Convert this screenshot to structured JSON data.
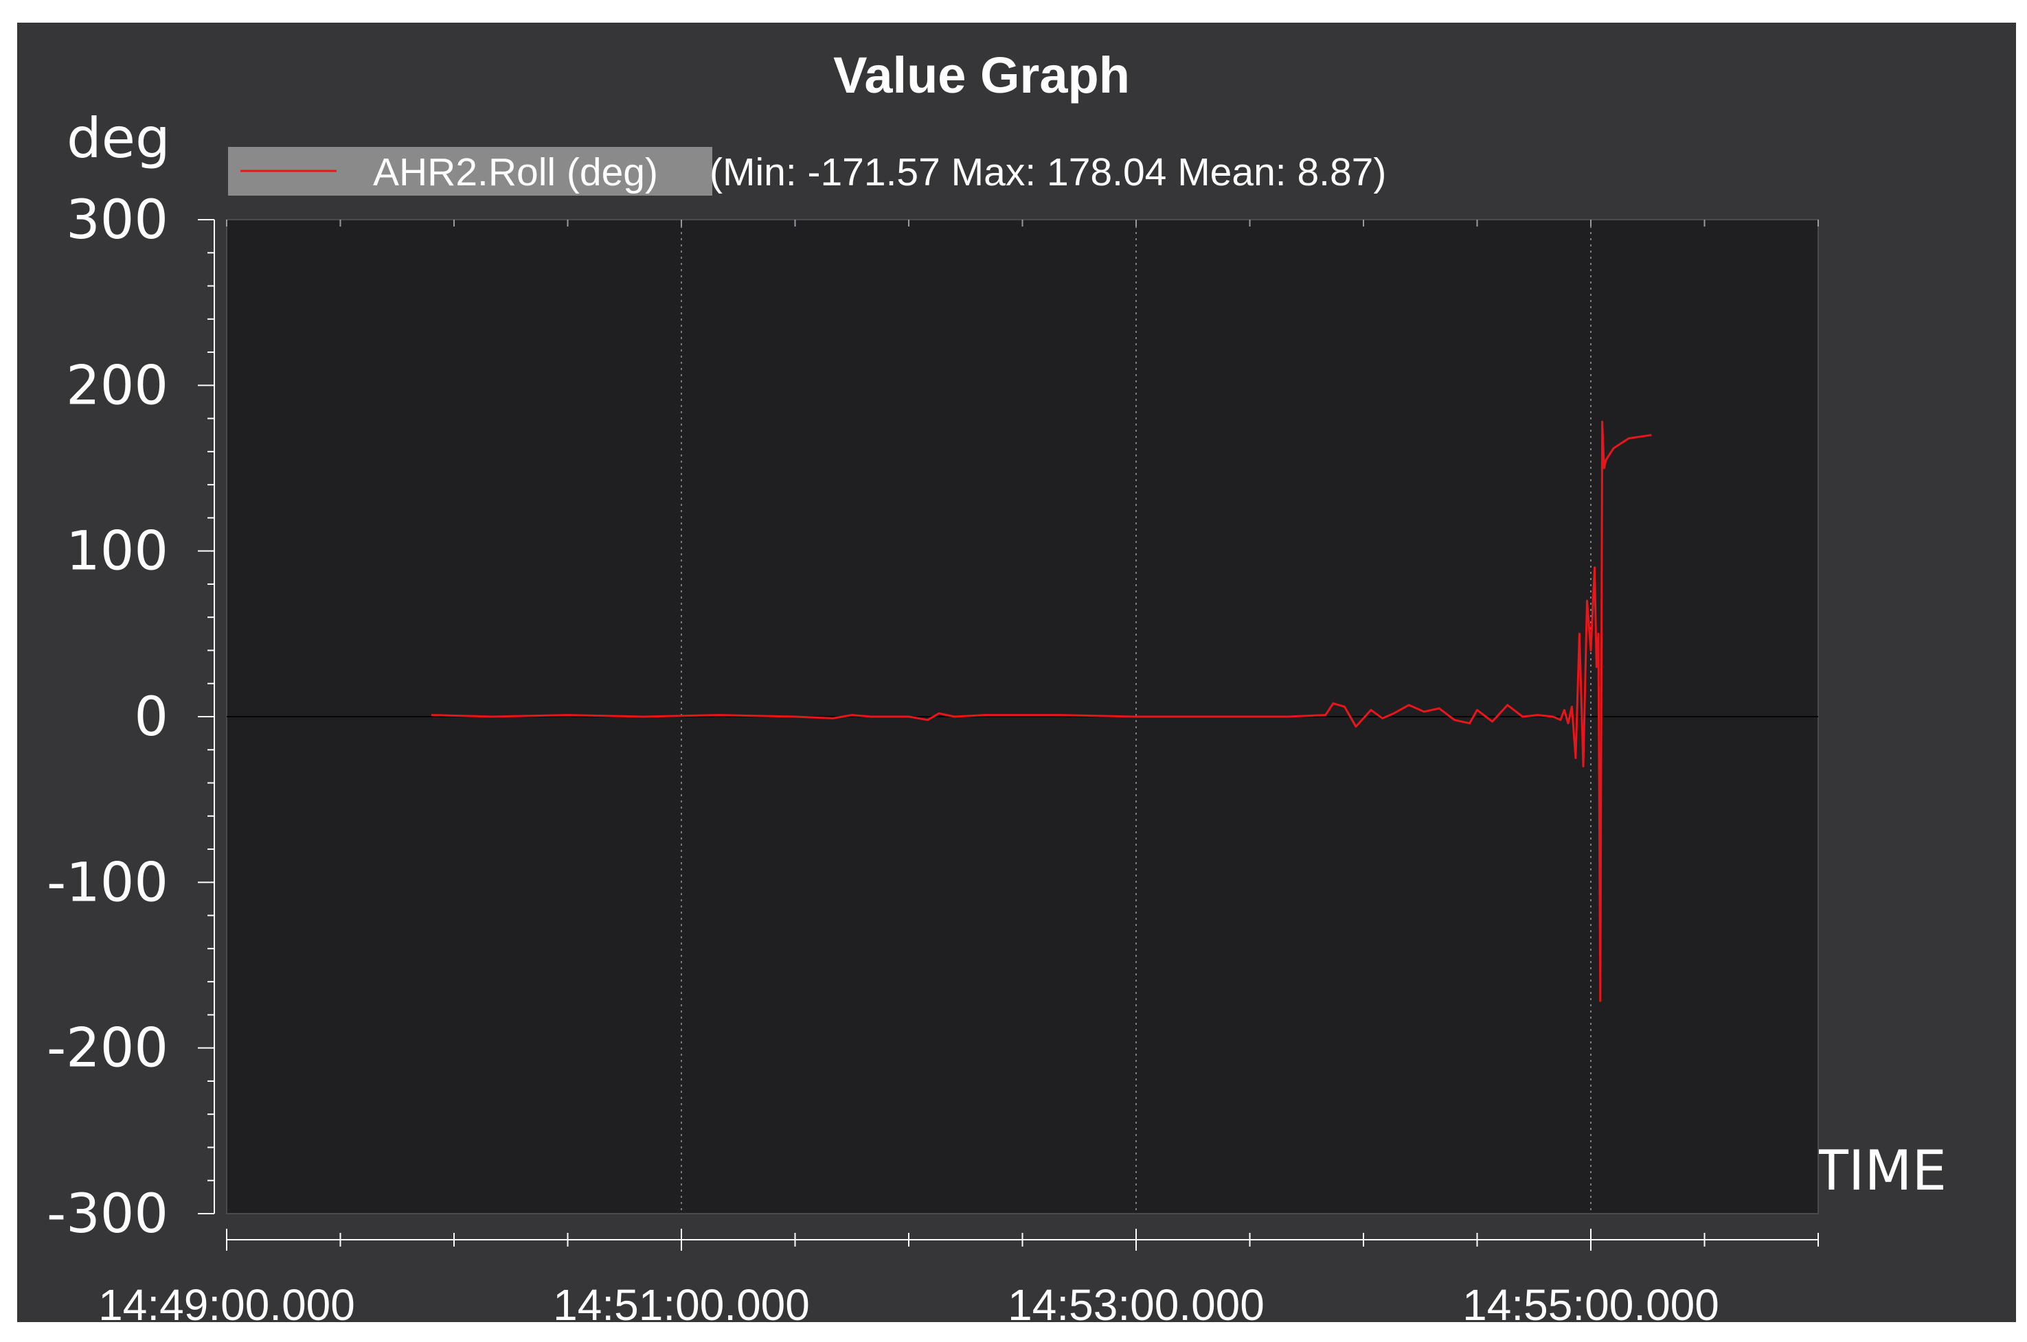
{
  "chart_data": {
    "type": "line",
    "title": "Value Graph",
    "ylabel": "deg",
    "xlabel": "TIME",
    "ylim": [
      -300,
      300
    ],
    "yticks": [
      300,
      200,
      100,
      0,
      -100,
      -200,
      -300
    ],
    "ytick_labels": [
      "300",
      "200",
      "100",
      "0",
      "-100",
      "-200",
      "-300"
    ],
    "xlim": [
      "14:49:00.000",
      "14:56:00.000"
    ],
    "xticks": [
      "14:49:00.000",
      "14:51:00.000",
      "14:53:00.000",
      "14:55:00.000"
    ],
    "grid": true,
    "legend_position": "top-left",
    "series": [
      {
        "name": "AHR2.Roll (deg)",
        "stats_text": "(Min: -171.57 Max: 178.04 Mean: 8.87)",
        "color": "#e8161b",
        "x": [
          "14:49:54.000",
          "14:50:10.000",
          "14:50:30.000",
          "14:50:50.000",
          "14:51:10.000",
          "14:51:30.000",
          "14:51:40.000",
          "14:51:45.000",
          "14:51:50.000",
          "14:52:00.000",
          "14:52:05.000",
          "14:52:08.000",
          "14:52:12.000",
          "14:52:20.000",
          "14:52:40.000",
          "14:53:00.000",
          "14:53:20.000",
          "14:53:40.000",
          "14:53:50.000",
          "14:53:52.000",
          "14:53:55.000",
          "14:53:58.000",
          "14:54:02.000",
          "14:54:05.000",
          "14:54:08.000",
          "14:54:12.000",
          "14:54:16.000",
          "14:54:20.000",
          "14:54:24.000",
          "14:54:28.000",
          "14:54:30.000",
          "14:54:34.000",
          "14:54:38.000",
          "14:54:42.000",
          "14:54:46.000",
          "14:54:50.000",
          "14:54:52.000",
          "14:54:53.000",
          "14:54:54.000",
          "14:54:55.000",
          "14:54:56.000",
          "14:54:57.000",
          "14:54:58.000",
          "14:54:59.000",
          "14:55:00.000",
          "14:55:01.000",
          "14:55:01.500",
          "14:55:02.000",
          "14:55:02.500",
          "14:55:03.000",
          "14:55:03.500",
          "14:55:04.000",
          "14:55:06.000",
          "14:55:10.000",
          "14:55:16.000"
        ],
        "values": [
          1,
          0,
          1,
          0,
          1,
          0,
          -1,
          1,
          0,
          0,
          -2,
          2,
          0,
          1,
          1,
          0,
          0,
          0,
          1,
          8,
          6,
          -6,
          4,
          -1,
          2,
          7,
          3,
          5,
          -2,
          -4,
          4,
          -3,
          7,
          0,
          1,
          0,
          -2,
          4,
          -4,
          6,
          -25,
          50,
          -30,
          70,
          40,
          90,
          30,
          50,
          -171.57,
          178,
          150,
          155,
          162,
          168,
          170
        ]
      }
    ]
  }
}
